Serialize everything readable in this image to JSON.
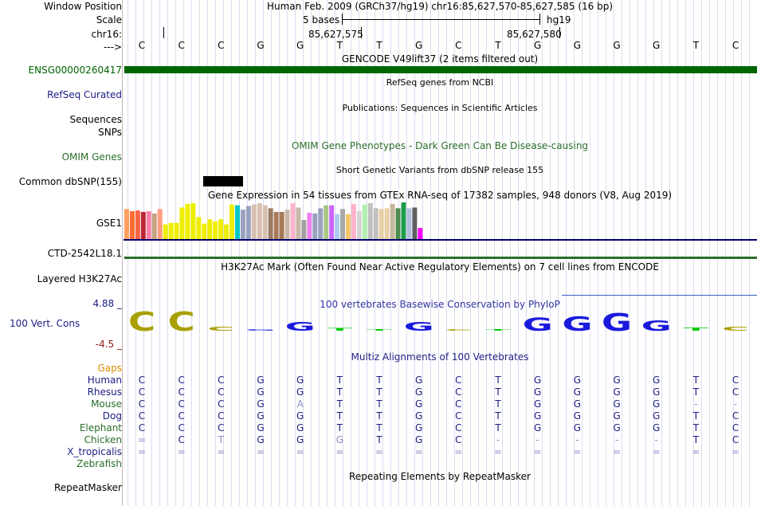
{
  "header": {
    "window_position_label": "Window Position",
    "scale_label": "Scale",
    "chr_label": "chr16:",
    "arrow_label": "--->",
    "assembly_position": "Human Feb. 2009 (GRCh37/hg19)   chr16:85,627,570-85,627,585 (16 bp)",
    "scale_text": "5 bases",
    "scale_db": "hg19",
    "pos_1": "85,627,575",
    "pos_2": "85,627,580"
  },
  "bases": [
    "C",
    "C",
    "C",
    "G",
    "G",
    "T",
    "T",
    "G",
    "C",
    "T",
    "G",
    "G",
    "G",
    "G",
    "T",
    "C"
  ],
  "tracks": {
    "gencode_title": "GENCODE V49lift37 (2 items filtered out)",
    "gene_label": "ENSG00000260417",
    "refseq_title": "RefSeq genes from NCBI",
    "refseq_label": "RefSeq Curated",
    "publications_title": "Publications: Sequences in Scientific Articles",
    "sequences_label": "Sequences",
    "snps_label": "SNPs",
    "omim_title": "OMIM Gene Phenotypes - Dark Green Can Be Disease-causing",
    "omim_label": "OMIM Genes",
    "dbsnp_title": "Short Genetic Variants from dbSNP release 155",
    "dbsnp_label": "Common dbSNP(155)",
    "gtex_title": "Gene Expression in 54 tissues from GTEx RNA-seq of 17382 samples, 948 donors (V8, Aug 2019)",
    "gse_label": "GSE1",
    "ctd_label": "CTD-2542L18.1",
    "h3k27_title": "H3K27Ac Mark (Often Found Near Active Regulatory Elements) on 7 cell lines from ENCODE",
    "h3k27_label": "Layered H3K27Ac",
    "cons_title": "100 vertebrates Basewise Conservation by PhyloP",
    "cons_label": "100 Vert. Cons",
    "cons_max": "4.88 _",
    "cons_min": "-4.5 _",
    "multiz_title": "Multiz Alignments of 100 Vertebrates",
    "gaps_label": "Gaps",
    "repeat_title": "Repeating Elements by RepeatMasker",
    "repeat_label": "RepeatMasker"
  },
  "gtex_values": [
    0.82,
    0.76,
    0.78,
    0.74,
    0.76,
    0.7,
    0.82,
    0.4,
    0.44,
    0.44,
    0.86,
    0.96,
    0.98,
    0.6,
    0.42,
    0.54,
    0.48,
    0.54,
    0.4,
    0.94,
    0.92,
    0.8,
    0.9,
    0.94,
    0.98,
    0.92,
    0.84,
    0.74,
    0.74,
    0.8,
    0.98,
    0.86,
    0.52,
    0.72,
    0.7,
    0.84,
    0.92,
    0.92,
    0.68,
    0.82,
    0.68,
    0.96,
    0.76,
    0.94,
    0.98,
    0.84,
    0.82,
    0.84,
    0.96,
    0.84,
    1.0,
    0.84,
    0.86,
    0.3
  ],
  "gtex_colors": [
    "#ff9e5f",
    "#ff6a2f",
    "#ff6447",
    "#bd2633",
    "#ff80a4",
    "#c2a382",
    "#ff9d7f",
    "#eeee00",
    "#eeee00",
    "#eeee00",
    "#eeee00",
    "#eeee00",
    "#eeee00",
    "#eeee00",
    "#eeee00",
    "#eeee00",
    "#eeee00",
    "#eeee00",
    "#eeee00",
    "#eeee00",
    "#00c8c8",
    "#99a2bf",
    "#99a2bf",
    "#d6bfb0",
    "#d6bfb0",
    "#d6bfb0",
    "#9c7b63",
    "#a97958",
    "#a97958",
    "#c9b8a8",
    "#ffb3cc",
    "#c9b8a8",
    "#a0a0a0",
    "#ee82ee",
    "#99a2bf",
    "#99a2bf",
    "#aac785",
    "#cc66ff",
    "#adcced",
    "#a8a8a8",
    "#f4c76a",
    "#ffb3cc",
    "#d4d4d4",
    "#b0f0b0",
    "#c0c0c0",
    "#c0c0c0",
    "#e8cfa6",
    "#e8cfa6",
    "#c6b79e",
    "#4d8b4d",
    "#1a9e4a",
    "#b0bddc",
    "#606060",
    "#ff00ff"
  ],
  "cons_letters": [
    {
      "base": "C",
      "h": 24,
      "color": "#a8a000"
    },
    {
      "base": "C",
      "h": 24,
      "color": "#a8a000"
    },
    {
      "base": "C",
      "h": 5,
      "color": "#a8a000"
    },
    {
      "base": "G",
      "h": 2,
      "color": "#3232d6"
    },
    {
      "base": "G",
      "h": 11,
      "color": "#1a1adc"
    },
    {
      "base": "T",
      "h": 3,
      "color": "#00c800"
    },
    {
      "base": "T",
      "h": 2,
      "color": "#00c800"
    },
    {
      "base": "G",
      "h": 11,
      "color": "#1a1adc"
    },
    {
      "base": "C",
      "h": 2,
      "color": "#a8a000"
    },
    {
      "base": "T",
      "h": 2,
      "color": "#00c800"
    },
    {
      "base": "G",
      "h": 16,
      "color": "#1a1adc"
    },
    {
      "base": "G",
      "h": 18,
      "color": "#1a1adc"
    },
    {
      "base": "G",
      "h": 22,
      "color": "#1a1adc"
    },
    {
      "base": "G",
      "h": 13,
      "color": "#1a1adc"
    },
    {
      "base": "T",
      "h": 4,
      "color": "#00c800"
    },
    {
      "base": "C",
      "h": 5,
      "color": "#a8a000"
    }
  ],
  "species": [
    {
      "name": "Human",
      "color": "#1c1c84",
      "seq": [
        "C",
        "C",
        "C",
        "G",
        "G",
        "T",
        "T",
        "G",
        "C",
        "T",
        "G",
        "G",
        "G",
        "G",
        "T",
        "C"
      ]
    },
    {
      "name": "Rhesus",
      "color": "#1c1c84",
      "seq": [
        "C",
        "C",
        "C",
        "G",
        "G",
        "T",
        "T",
        "G",
        "C",
        "T",
        "G",
        "G",
        "G",
        "G",
        "T",
        "C"
      ]
    },
    {
      "name": "Mouse",
      "color": "#2a6e2a",
      "seq": [
        "C",
        "C",
        "C",
        "G",
        "A",
        "T",
        "T",
        "G",
        "C",
        "T",
        "G",
        "G",
        "G",
        "G",
        "-",
        "-"
      ]
    },
    {
      "name": "Dog",
      "color": "#1c1c84",
      "seq": [
        "C",
        "C",
        "C",
        "G",
        "G",
        "T",
        "T",
        "G",
        "C",
        "T",
        "G",
        "G",
        "G",
        "G",
        "T",
        "C"
      ]
    },
    {
      "name": "Elephant",
      "color": "#2a6e2a",
      "seq": [
        "C",
        "C",
        "C",
        "G",
        "G",
        "T",
        "T",
        "G",
        "C",
        "T",
        "G",
        "G",
        "G",
        "G",
        "T",
        "C"
      ]
    },
    {
      "name": "Chicken",
      "color": "#2a6e2a",
      "seq": [
        "=",
        "C",
        "T",
        "G",
        "G",
        "G",
        "T",
        "G",
        "C",
        "-",
        "-",
        "-",
        "-",
        "-",
        "T",
        "C"
      ]
    },
    {
      "name": "X_tropicalis",
      "color": "#1c1c84",
      "seq": [
        "=",
        "=",
        "=",
        "=",
        "=",
        "=",
        "=",
        "=",
        "=",
        "=",
        "=",
        "=",
        "=",
        "=",
        "=",
        "="
      ]
    },
    {
      "name": "Zebrafish",
      "color": "#2a6e2a",
      "seq": [
        "",
        "",
        "",
        "",
        "",
        "",
        "",
        "",
        "",
        "",
        "",
        "",
        "",
        "",
        "",
        ""
      ]
    }
  ],
  "colors": {
    "gene_green": "#006400",
    "blue_label": "#1c1c84",
    "dark_green_label": "#2a6e2a",
    "omim_green": "#2a6e2a",
    "gaps_orange": "#e08a00",
    "cons_min_red": "#8b1a1a",
    "track_line_navy": "#00006e"
  }
}
